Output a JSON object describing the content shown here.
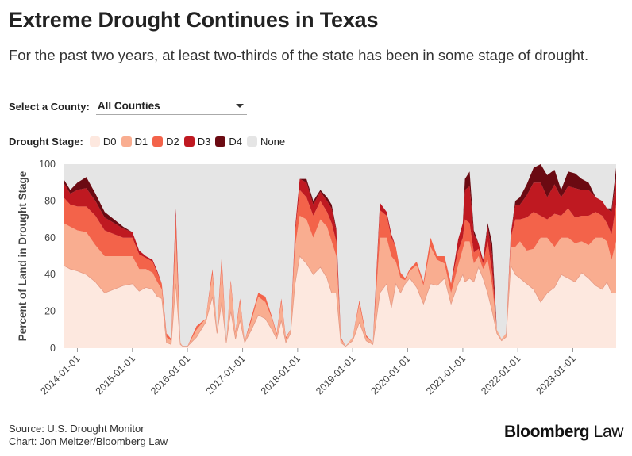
{
  "header": {
    "title": "Extreme Drought Continues in Texas",
    "subtitle": "For the past two years, at least two-thirds of the state has been in some stage of drought."
  },
  "filter": {
    "label": "Select a County:",
    "selected": "All Counties"
  },
  "legend": {
    "title": "Drought Stage:",
    "items": [
      {
        "label": "D0",
        "color": "#fde8df"
      },
      {
        "label": "D1",
        "color": "#f9ad90"
      },
      {
        "label": "D2",
        "color": "#f3634a"
      },
      {
        "label": "D3",
        "color": "#bf1921"
      },
      {
        "label": "D4",
        "color": "#6b0a12"
      },
      {
        "label": "None",
        "color": "#e5e5e5"
      }
    ]
  },
  "footer": {
    "source": "Source: U.S. Drought Monitor",
    "credit": "Chart: Jon Meltzer/Bloomberg Law"
  },
  "logo": {
    "brand": "Bloomberg",
    "suffix": "Law"
  },
  "chart_data": {
    "type": "area",
    "stacked": true,
    "ylabel": "Percent of Land in Drought Stage",
    "ylim": [
      0,
      100
    ],
    "yticks": [
      0,
      20,
      40,
      60,
      80,
      100
    ],
    "x_tick_labels": [
      "2014-01-01",
      "2015-01-01",
      "2016-01-01",
      "2017-01-01",
      "2018-01-01",
      "2019-01-01",
      "2020-01-01",
      "2021-01-01",
      "2022-01-01",
      "2023-01-01"
    ],
    "xlim": [
      "2013-10-01",
      "2023-10-15"
    ],
    "grid": false,
    "legend_placement": "top",
    "x": [
      "2013-10-01",
      "2013-11-15",
      "2014-01-01",
      "2014-03-01",
      "2014-05-01",
      "2014-07-01",
      "2014-09-01",
      "2014-11-01",
      "2015-01-01",
      "2015-02-15",
      "2015-04-01",
      "2015-05-15",
      "2015-06-15",
      "2015-07-15",
      "2015-08-15",
      "2015-09-15",
      "2015-10-15",
      "2015-11-15",
      "2015-12-01",
      "2016-01-01",
      "2016-03-01",
      "2016-05-01",
      "2016-06-15",
      "2016-07-15",
      "2016-08-15",
      "2016-09-15",
      "2016-10-15",
      "2016-11-15",
      "2016-12-15",
      "2017-01-15",
      "2017-03-01",
      "2017-04-15",
      "2017-06-01",
      "2017-07-15",
      "2017-08-15",
      "2017-09-15",
      "2017-10-15",
      "2017-11-15",
      "2017-12-15",
      "2018-01-15",
      "2018-03-01",
      "2018-04-15",
      "2018-06-01",
      "2018-07-15",
      "2018-08-15",
      "2018-09-15",
      "2018-10-15",
      "2018-11-15",
      "2019-01-01",
      "2019-02-15",
      "2019-04-01",
      "2019-05-15",
      "2019-07-01",
      "2019-08-15",
      "2019-09-15",
      "2019-10-15",
      "2019-11-15",
      "2019-12-15",
      "2020-01-15",
      "2020-03-01",
      "2020-04-15",
      "2020-06-01",
      "2020-07-15",
      "2020-09-01",
      "2020-10-15",
      "2020-12-01",
      "2021-01-01",
      "2021-01-15",
      "2021-02-15",
      "2021-03-15",
      "2021-04-15",
      "2021-05-15",
      "2021-06-15",
      "2021-07-15",
      "2021-08-15",
      "2021-09-15",
      "2021-10-15",
      "2021-11-15",
      "2021-12-15",
      "2022-01-15",
      "2022-03-01",
      "2022-04-15",
      "2022-06-01",
      "2022-07-15",
      "2022-09-01",
      "2022-10-15",
      "2022-12-01",
      "2023-01-15",
      "2023-03-01",
      "2023-04-15",
      "2023-06-01",
      "2023-07-15",
      "2023-08-15",
      "2023-09-15",
      "2023-10-15"
    ],
    "series": [
      {
        "name": "D0",
        "values": [
          45,
          43,
          42,
          40,
          36,
          30,
          32,
          34,
          35,
          31,
          33,
          32,
          28,
          27,
          3,
          2,
          35,
          2,
          1,
          1,
          6,
          14,
          28,
          8,
          25,
          3,
          20,
          5,
          15,
          3,
          10,
          18,
          16,
          10,
          5,
          15,
          3,
          8,
          35,
          50,
          46,
          40,
          44,
          38,
          30,
          30,
          3,
          1,
          4,
          14,
          4,
          2,
          30,
          35,
          22,
          35,
          30,
          35,
          38,
          33,
          24,
          35,
          34,
          38,
          24,
          35,
          40,
          36,
          38,
          36,
          44,
          38,
          30,
          20,
          8,
          4,
          6,
          45,
          40,
          38,
          35,
          32,
          25,
          30,
          33,
          40,
          38,
          36,
          41,
          38,
          34,
          32,
          36,
          30,
          30
        ]
      },
      {
        "name": "D1",
        "values": [
          23,
          23,
          22,
          23,
          20,
          20,
          18,
          16,
          15,
          12,
          10,
          9,
          8,
          5,
          3,
          2,
          25,
          1,
          0,
          0,
          4,
          2,
          12,
          2,
          20,
          1,
          15,
          3,
          10,
          1,
          5,
          10,
          9,
          6,
          2,
          10,
          2,
          2,
          20,
          22,
          24,
          20,
          26,
          28,
          28,
          20,
          2,
          0,
          2,
          10,
          2,
          1,
          30,
          25,
          28,
          12,
          8,
          2,
          4,
          12,
          10,
          20,
          14,
          8,
          6,
          10,
          14,
          22,
          20,
          10,
          6,
          5,
          18,
          14,
          2,
          1,
          2,
          10,
          15,
          20,
          18,
          22,
          35,
          30,
          22,
          20,
          22,
          21,
          17,
          18,
          26,
          28,
          22,
          18,
          28
        ]
      },
      {
        "name": "D2",
        "values": [
          14,
          12,
          13,
          14,
          16,
          14,
          12,
          10,
          10,
          8,
          6,
          6,
          5,
          3,
          2,
          1,
          12,
          0,
          0,
          0,
          2,
          0,
          3,
          0,
          5,
          0,
          2,
          1,
          2,
          0,
          2,
          2,
          3,
          1,
          1,
          2,
          1,
          0,
          8,
          14,
          12,
          12,
          10,
          8,
          10,
          8,
          1,
          0,
          0,
          2,
          1,
          0,
          15,
          12,
          10,
          8,
          3,
          1,
          1,
          2,
          2,
          5,
          2,
          4,
          5,
          8,
          6,
          12,
          10,
          6,
          4,
          3,
          10,
          7,
          0,
          0,
          0,
          5,
          15,
          12,
          18,
          20,
          12,
          10,
          18,
          12,
          16,
          14,
          14,
          16,
          14,
          12,
          10,
          14,
          20
        ]
      },
      {
        "name": "D3",
        "values": [
          8,
          6,
          9,
          10,
          8,
          7,
          6,
          5,
          3,
          2,
          1,
          1,
          1,
          0,
          0,
          0,
          4,
          0,
          0,
          0,
          0,
          0,
          0,
          0,
          0,
          0,
          0,
          0,
          0,
          0,
          0,
          0,
          0,
          0,
          0,
          0,
          0,
          0,
          2,
          6,
          8,
          6,
          5,
          6,
          8,
          6,
          0,
          0,
          0,
          0,
          0,
          0,
          4,
          2,
          2,
          0,
          0,
          0,
          0,
          0,
          0,
          0,
          0,
          0,
          0,
          6,
          8,
          16,
          20,
          10,
          3,
          2,
          8,
          10,
          0,
          0,
          0,
          2,
          8,
          8,
          12,
          16,
          18,
          12,
          16,
          10,
          12,
          16,
          14,
          14,
          8,
          8,
          8,
          12,
          14
        ]
      },
      {
        "name": "D4",
        "values": [
          2,
          2,
          4,
          6,
          4,
          3,
          2,
          1,
          0,
          0,
          0,
          0,
          0,
          0,
          0,
          0,
          0,
          0,
          0,
          0,
          0,
          0,
          0,
          0,
          0,
          0,
          0,
          0,
          0,
          0,
          0,
          0,
          0,
          0,
          0,
          0,
          0,
          0,
          0,
          0,
          2,
          2,
          1,
          2,
          2,
          1,
          0,
          0,
          0,
          0,
          0,
          0,
          0,
          0,
          0,
          0,
          0,
          0,
          0,
          0,
          0,
          0,
          0,
          0,
          0,
          0,
          0,
          6,
          8,
          2,
          0,
          0,
          2,
          6,
          0,
          0,
          0,
          0,
          2,
          4,
          6,
          8,
          10,
          12,
          8,
          4,
          8,
          8,
          6,
          4,
          0,
          0,
          0,
          2,
          6
        ]
      }
    ]
  }
}
